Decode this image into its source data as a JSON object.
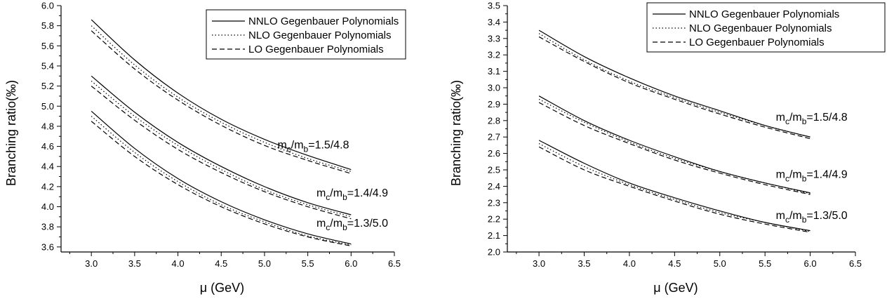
{
  "chart_data": [
    {
      "type": "line",
      "xlabel": "μ (GeV)",
      "ylabel": "Branching ratio(‰)",
      "xlim": [
        2.65,
        6.5
      ],
      "ylim": [
        3.55,
        6.0
      ],
      "xticks": [
        "3.0",
        "3.5",
        "4.0",
        "4.5",
        "5.0",
        "5.5",
        "6.0",
        "6.5"
      ],
      "yticks": [
        "3.6",
        "3.8",
        "4.0",
        "4.2",
        "4.4",
        "4.6",
        "4.8",
        "5.0",
        "5.2",
        "5.4",
        "5.6",
        "5.8",
        "6.0"
      ],
      "legend": {
        "position": "top-right",
        "entries": [
          {
            "label": "NNLO Gegenbauer Polynomials",
            "style": "solid"
          },
          {
            "label": "NLO Gegenbauer Polynomials",
            "style": "dotted"
          },
          {
            "label": "LO Gegenbauer Polynomials",
            "style": "dashed"
          }
        ]
      },
      "groups": [
        {
          "annotation": "m_c/m_b=1.5/4.8",
          "annotation_parts": [
            "m",
            "c",
            "/m",
            "b",
            "=1.5/4.8"
          ],
          "annotation_at": [
            5.15,
            4.58
          ],
          "series": [
            {
              "name": "NNLO Gegenbauer Polynomials",
              "style": "solid",
              "x": [
                3.0,
                3.5,
                4.0,
                4.5,
                5.0,
                5.5,
                6.0
              ],
              "y": [
                5.86,
                5.46,
                5.13,
                4.87,
                4.67,
                4.51,
                4.37
              ]
            },
            {
              "name": "NLO Gegenbauer Polynomials",
              "style": "dotted",
              "x": [
                3.0,
                3.5,
                4.0,
                4.5,
                5.0,
                5.5,
                6.0
              ],
              "y": [
                5.8,
                5.41,
                5.09,
                4.84,
                4.64,
                4.48,
                4.35
              ]
            },
            {
              "name": "LO Gegenbauer Polynomials",
              "style": "dashed",
              "x": [
                3.0,
                3.5,
                4.0,
                4.5,
                5.0,
                5.5,
                6.0
              ],
              "y": [
                5.75,
                5.37,
                5.06,
                4.81,
                4.61,
                4.46,
                4.33
              ]
            }
          ]
        },
        {
          "annotation": "m_c/m_b=1.4/4.9",
          "annotation_parts": [
            "m",
            "c",
            "/m",
            "b",
            "=1.4/4.9"
          ],
          "annotation_at": [
            5.6,
            4.1
          ],
          "series": [
            {
              "name": "NNLO Gegenbauer Polynomials",
              "style": "solid",
              "x": [
                3.0,
                3.5,
                4.0,
                4.5,
                5.0,
                5.5,
                6.0
              ],
              "y": [
                5.3,
                4.94,
                4.64,
                4.4,
                4.2,
                4.04,
                3.92
              ]
            },
            {
              "name": "NLO Gegenbauer Polynomials",
              "style": "dotted",
              "x": [
                3.0,
                3.5,
                4.0,
                4.5,
                5.0,
                5.5,
                6.0
              ],
              "y": [
                5.25,
                4.9,
                4.61,
                4.37,
                4.17,
                4.02,
                3.9
              ]
            },
            {
              "name": "LO Gegenbauer Polynomials",
              "style": "dashed",
              "x": [
                3.0,
                3.5,
                4.0,
                4.5,
                5.0,
                5.5,
                6.0
              ],
              "y": [
                5.2,
                4.86,
                4.57,
                4.34,
                4.15,
                4.0,
                3.88
              ]
            }
          ]
        },
        {
          "annotation": "m_c/m_b=1.3/5.0",
          "annotation_parts": [
            "m",
            "c",
            "/m",
            "b",
            "=1.3/5.0"
          ],
          "annotation_at": [
            5.6,
            3.8
          ],
          "series": [
            {
              "name": "NNLO Gegenbauer Polynomials",
              "style": "solid",
              "x": [
                3.0,
                3.5,
                4.0,
                4.5,
                5.0,
                5.5,
                6.0
              ],
              "y": [
                4.95,
                4.58,
                4.28,
                4.05,
                3.87,
                3.73,
                3.63
              ]
            },
            {
              "name": "NLO Gegenbauer Polynomials",
              "style": "dotted",
              "x": [
                3.0,
                3.5,
                4.0,
                4.5,
                5.0,
                5.5,
                6.0
              ],
              "y": [
                4.9,
                4.54,
                4.25,
                4.02,
                3.85,
                3.71,
                3.62
              ]
            },
            {
              "name": "LO Gegenbauer Polynomials",
              "style": "dashed",
              "x": [
                3.0,
                3.5,
                4.0,
                4.5,
                5.0,
                5.5,
                6.0
              ],
              "y": [
                4.85,
                4.5,
                4.22,
                4.0,
                3.83,
                3.7,
                3.61
              ]
            }
          ]
        }
      ]
    },
    {
      "type": "line",
      "xlabel": "μ (GeV)",
      "ylabel": "Branching ratio(‰)",
      "xlim": [
        2.65,
        6.5
      ],
      "ylim": [
        2.0,
        3.5
      ],
      "xticks": [
        "3.0",
        "3.5",
        "4.0",
        "4.5",
        "5.0",
        "5.5",
        "6.0",
        "6.5"
      ],
      "yticks": [
        "2.0",
        "2.1",
        "2.2",
        "2.3",
        "2.4",
        "2.5",
        "2.6",
        "2.7",
        "2.8",
        "2.9",
        "3.0",
        "3.1",
        "3.2",
        "3.3",
        "3.4",
        "3.5"
      ],
      "legend": {
        "position": "top-right",
        "entries": [
          {
            "label": "NNLO Gegenbauer Polynomials",
            "style": "solid"
          },
          {
            "label": "NLO Gegenbauer Polynomials",
            "style": "dotted"
          },
          {
            "label": "LO Gegenbauer Polynomials",
            "style": "dashed"
          }
        ]
      },
      "groups": [
        {
          "annotation": "m_c/m_b=1.5/4.8",
          "annotation_parts": [
            "m",
            "c",
            "/m",
            "b",
            "=1.5/4.8"
          ],
          "annotation_at": [
            5.62,
            2.8
          ],
          "series": [
            {
              "name": "NNLO Gegenbauer Polynomials",
              "style": "solid",
              "x": [
                3.0,
                3.5,
                4.0,
                4.5,
                5.0,
                5.5,
                6.0
              ],
              "y": [
                3.35,
                3.19,
                3.06,
                2.95,
                2.86,
                2.77,
                2.7
              ]
            },
            {
              "name": "NLO Gegenbauer Polynomials",
              "style": "dotted",
              "x": [
                3.0,
                3.5,
                4.0,
                4.5,
                5.0,
                5.5,
                6.0
              ],
              "y": [
                3.33,
                3.17,
                3.04,
                2.94,
                2.85,
                2.77,
                2.7
              ]
            },
            {
              "name": "LO Gegenbauer Polynomials",
              "style": "dashed",
              "x": [
                3.0,
                3.5,
                4.0,
                4.5,
                5.0,
                5.5,
                6.0
              ],
              "y": [
                3.31,
                3.16,
                3.03,
                2.93,
                2.84,
                2.76,
                2.69
              ]
            }
          ]
        },
        {
          "annotation": "m_c/m_b=1.4/4.9",
          "annotation_parts": [
            "m",
            "c",
            "/m",
            "b",
            "=1.4/4.9"
          ],
          "annotation_at": [
            5.62,
            2.45
          ],
          "series": [
            {
              "name": "NNLO Gegenbauer Polynomials",
              "style": "solid",
              "x": [
                3.0,
                3.5,
                4.0,
                4.5,
                5.0,
                5.5,
                6.0
              ],
              "y": [
                2.95,
                2.8,
                2.68,
                2.58,
                2.49,
                2.42,
                2.36
              ]
            },
            {
              "name": "NLO Gegenbauer Polynomials",
              "style": "dotted",
              "x": [
                3.0,
                3.5,
                4.0,
                4.5,
                5.0,
                5.5,
                6.0
              ],
              "y": [
                2.93,
                2.79,
                2.67,
                2.57,
                2.49,
                2.42,
                2.355
              ]
            },
            {
              "name": "LO Gegenbauer Polynomials",
              "style": "dashed",
              "x": [
                3.0,
                3.5,
                4.0,
                4.5,
                5.0,
                5.5,
                6.0
              ],
              "y": [
                2.91,
                2.77,
                2.66,
                2.56,
                2.48,
                2.41,
                2.35
              ]
            }
          ]
        },
        {
          "annotation": "m_c/m_b=1.3/5.0",
          "annotation_parts": [
            "m",
            "c",
            "/m",
            "b",
            "=1.3/5.0"
          ],
          "annotation_at": [
            5.62,
            2.2
          ],
          "series": [
            {
              "name": "NNLO Gegenbauer Polynomials",
              "style": "solid",
              "x": [
                3.0,
                3.5,
                4.0,
                4.5,
                5.0,
                5.5,
                6.0
              ],
              "y": [
                2.68,
                2.54,
                2.42,
                2.33,
                2.25,
                2.18,
                2.13
              ]
            },
            {
              "name": "NLO Gegenbauer Polynomials",
              "style": "dotted",
              "x": [
                3.0,
                3.5,
                4.0,
                4.5,
                5.0,
                5.5,
                6.0
              ],
              "y": [
                2.66,
                2.52,
                2.41,
                2.32,
                2.24,
                2.18,
                2.125
              ]
            },
            {
              "name": "LO Gegenbauer Polynomials",
              "style": "dashed",
              "x": [
                3.0,
                3.5,
                4.0,
                4.5,
                5.0,
                5.5,
                6.0
              ],
              "y": [
                2.64,
                2.5,
                2.4,
                2.31,
                2.23,
                2.17,
                2.12
              ]
            }
          ]
        }
      ]
    }
  ]
}
